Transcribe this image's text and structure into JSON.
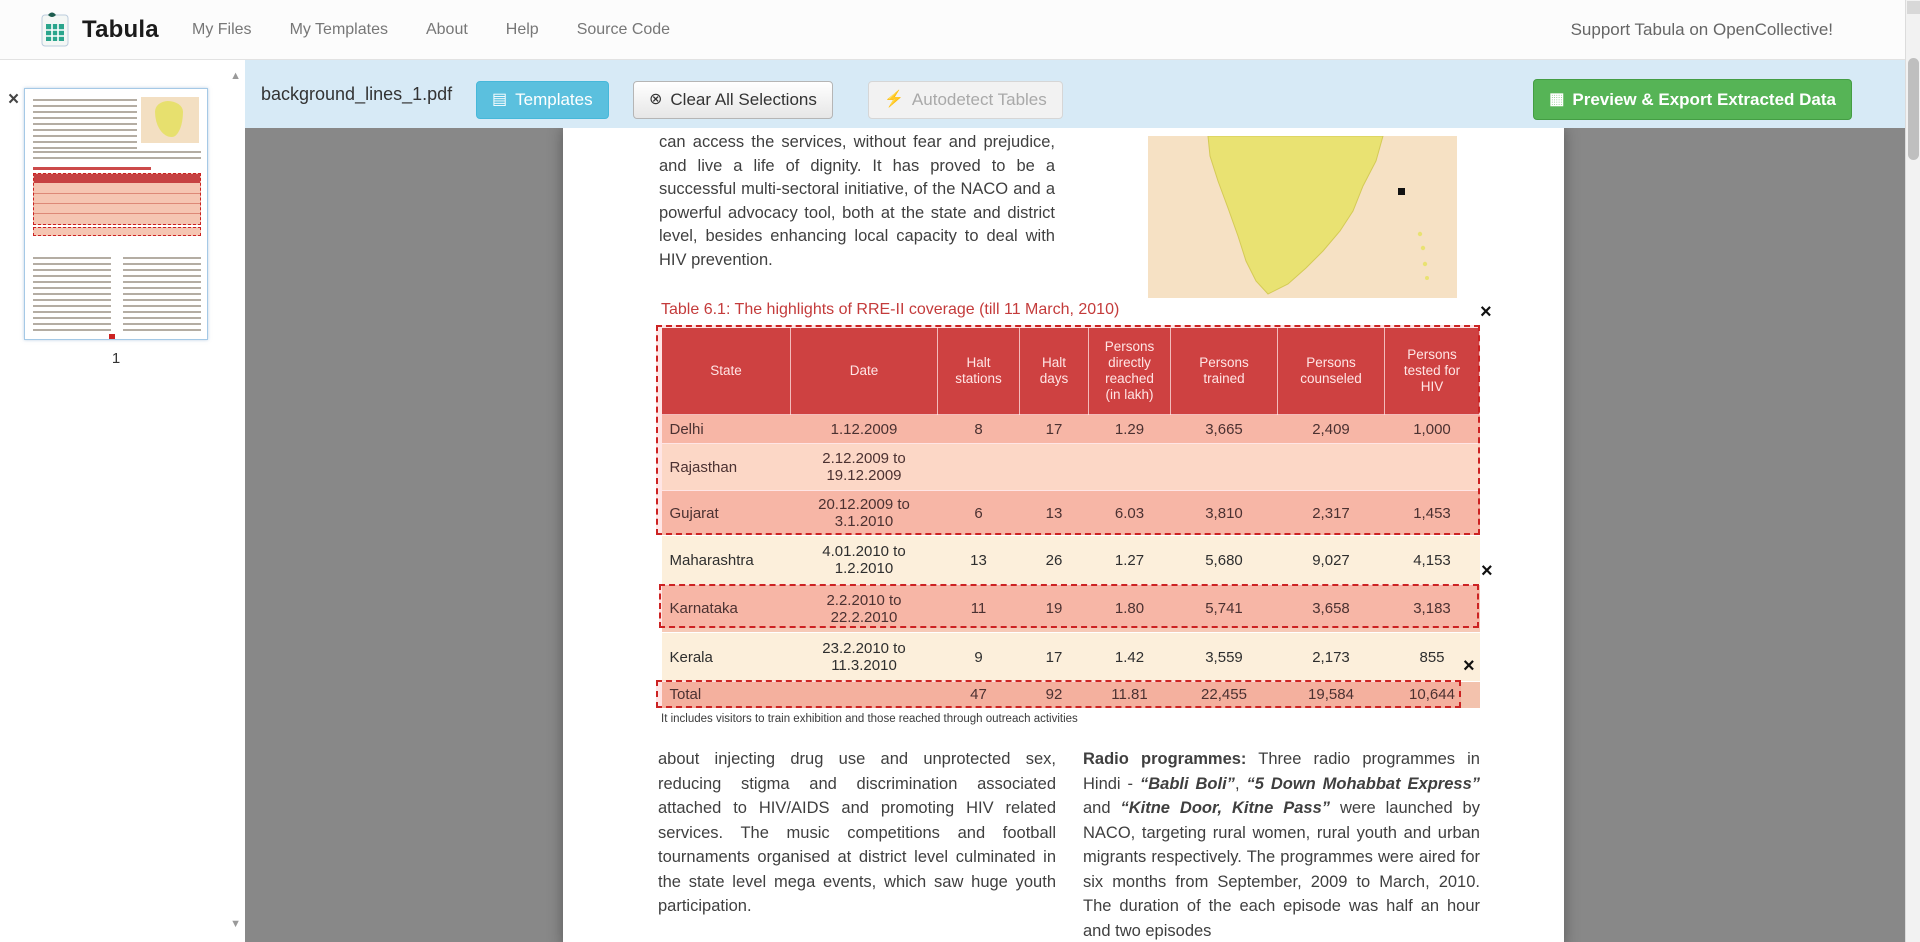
{
  "navbar": {
    "brand": "Tabula",
    "items": [
      {
        "label": "My Files"
      },
      {
        "label": "My Templates"
      },
      {
        "label": "About"
      },
      {
        "label": "Help"
      },
      {
        "label": "Source Code"
      }
    ],
    "support": "Support Tabula on OpenCollective!"
  },
  "sidebar": {
    "page_number": "1"
  },
  "toolbar": {
    "filename": "background_lines_1.pdf",
    "buttons": {
      "templates": "Templates",
      "clear": "Clear All Selections",
      "autodetect": "Autodetect Tables",
      "export": "Preview & Export Extracted Data"
    }
  },
  "icons": {
    "templates": "▤",
    "clear": "⊗",
    "autodetect": "⚡",
    "export": "▦",
    "close": "×",
    "selection_close": "×",
    "scroll_up": "▲",
    "scroll_down": "▼"
  },
  "document": {
    "intro": "can access the services, without fear and prejudice, and live a life of dignity. It has proved to be a successful multi-sectoral initiative, of the NACO and a powerful advocacy tool, both at the state and district level, besides enhancing local capacity to deal with HIV prevention.",
    "caption": "Table 6.1: The highlights of RRE-II coverage (till 11 March, 2010)",
    "table": {
      "headers": [
        "State",
        "Date",
        "Halt stations",
        "Halt days",
        "Persons directly reached (in lakh)",
        "Persons trained",
        "Persons counseled",
        "Persons tested for HIV"
      ],
      "rows": [
        [
          "Delhi",
          "1.12.2009",
          "8",
          "17",
          "1.29",
          "3,665",
          "2,409",
          "1,000"
        ],
        [
          "Rajasthan",
          "2.12.2009 to 19.12.2009",
          "",
          "",
          "",
          "",
          "",
          ""
        ],
        [
          "Gujarat",
          "20.12.2009 to 3.1.2010",
          "6",
          "13",
          "6.03",
          "3,810",
          "2,317",
          "1,453"
        ],
        [
          "Maharashtra",
          "4.01.2010 to 1.2.2010",
          "13",
          "26",
          "1.27",
          "5,680",
          "9,027",
          "4,153"
        ],
        [
          "Karnataka",
          "2.2.2010 to 22.2.2010",
          "11",
          "19",
          "1.80",
          "5,741",
          "3,658",
          "3,183"
        ],
        [
          "Kerala",
          "23.2.2010 to 11.3.2010",
          "9",
          "17",
          "1.42",
          "3,559",
          "2,173",
          "855"
        ],
        [
          "Total",
          "",
          "47",
          "92",
          "11.81",
          "22,455",
          "19,584",
          "10,644"
        ]
      ],
      "footnote": "It includes visitors to train exhibition and those reached through outreach activities"
    },
    "left_column": "about injecting drug use and unprotected sex, reducing stigma and discrimination associated attached to HIV/AIDS and promoting HIV related services. The music competitions and football tournaments organised at district level culminated in the state level mega events, which saw huge youth participation.",
    "right_column_segments": [
      {
        "text": "Radio programmes:",
        "style": "bold"
      },
      {
        "text": " Three radio programmes in Hindi - ",
        "style": "normal"
      },
      {
        "text": "“Babli Boli”",
        "style": "bolditalic"
      },
      {
        "text": ", ",
        "style": "normal"
      },
      {
        "text": "“5 Down Mohabbat Express”",
        "style": "bolditalic"
      },
      {
        "text": " and ",
        "style": "normal"
      },
      {
        "text": "“Kitne Door, Kitne Pass”",
        "style": "bolditalic"
      },
      {
        "text": " were launched by NACO, targeting rural women, rural youth and urban migrants respectively. The programmes were aired for six months from September, 2009 to March, 2010. The duration of the each episode was half an hour and two episodes",
        "style": "normal"
      }
    ]
  },
  "colors": {
    "toolbar_bg": "#d7eaf6",
    "templates_button": "#5bc0de",
    "export_button": "#56b456",
    "table_header_red": "#c64141",
    "row_pink": "#f6c9b6",
    "row_cream": "#fcefdb",
    "selection_red": "#cc2222",
    "workspace_gray": "#888888"
  }
}
